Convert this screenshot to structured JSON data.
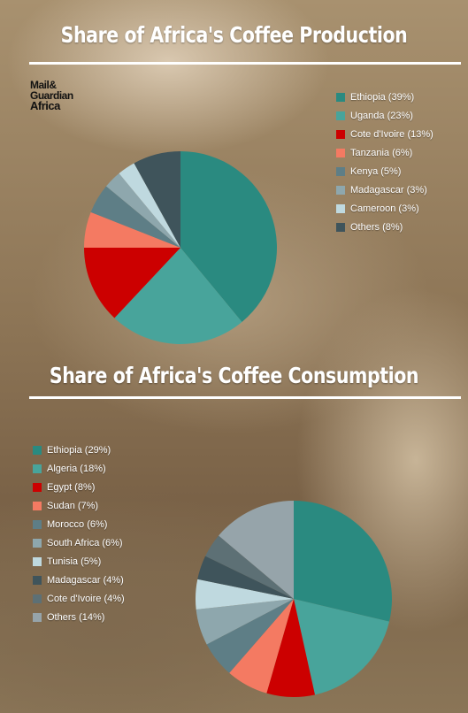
{
  "logo": {
    "line1": "Mail&",
    "line2": "Guardian",
    "line3": "Africa"
  },
  "chart_data": [
    {
      "type": "pie",
      "title": "Share of Africa's Coffee Production",
      "legend_position": "right",
      "slices": [
        {
          "label": "Ethiopia (39%)",
          "value": 39,
          "color": "#2a8a80"
        },
        {
          "label": "Uganda (23%)",
          "value": 23,
          "color": "#48a49b"
        },
        {
          "label": "Cote d'Ivoire (13%)",
          "value": 13,
          "color": "#cc0000"
        },
        {
          "label": "Tanzania (6%)",
          "value": 6,
          "color": "#f47a62"
        },
        {
          "label": "Kenya (5%)",
          "value": 5,
          "color": "#5e7e86"
        },
        {
          "label": "Madagascar (3%)",
          "value": 3,
          "color": "#8ea7ad"
        },
        {
          "label": "Cameroon (3%)",
          "value": 3,
          "color": "#bfd9df"
        },
        {
          "label": "Others (8%)",
          "value": 8,
          "color": "#3f545b"
        }
      ]
    },
    {
      "type": "pie",
      "title": "Share of Africa's Coffee Consumption",
      "legend_position": "left",
      "slices": [
        {
          "label": "Ethiopia (29%)",
          "value": 29,
          "color": "#2a8a80"
        },
        {
          "label": "Algeria (18%)",
          "value": 18,
          "color": "#48a49b"
        },
        {
          "label": "Egypt (8%)",
          "value": 8,
          "color": "#cc0000"
        },
        {
          "label": "Sudan (7%)",
          "value": 7,
          "color": "#f47a62"
        },
        {
          "label": "Morocco (6%)",
          "value": 6,
          "color": "#5e7e86"
        },
        {
          "label": "South Africa (6%)",
          "value": 6,
          "color": "#8ea7ad"
        },
        {
          "label": "Tunisia (5%)",
          "value": 5,
          "color": "#bfd9df"
        },
        {
          "label": "Madagascar (4%)",
          "value": 4,
          "color": "#3f545b"
        },
        {
          "label": "Cote d'Ivoire (4%)",
          "value": 4,
          "color": "#5d7075"
        },
        {
          "label": "Others (14%)",
          "value": 14,
          "color": "#96a4aa"
        }
      ]
    }
  ]
}
